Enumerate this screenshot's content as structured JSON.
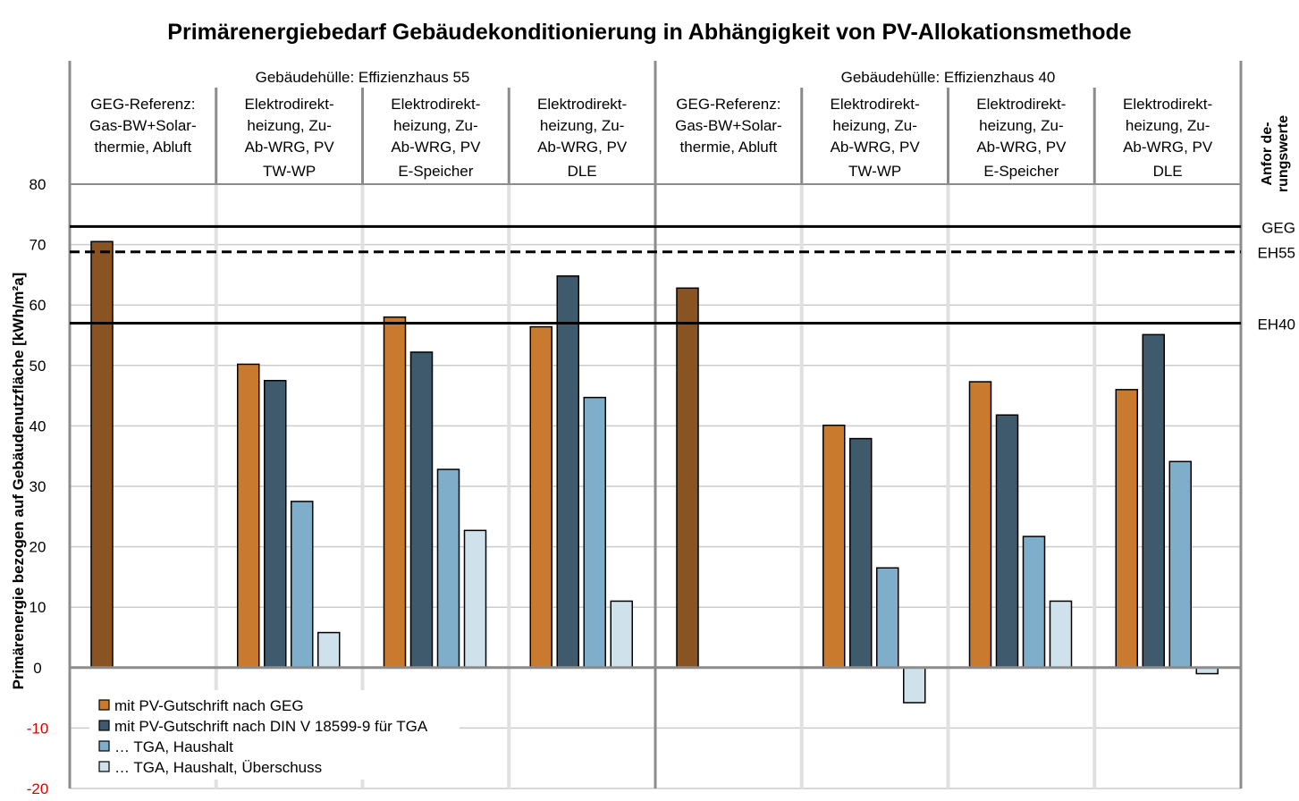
{
  "chart_data": {
    "type": "bar",
    "title": "Primärenergiebedarf  Gebäudekonditionierung in Abhängigkeit von PV-Allokationsmethode",
    "ylabel": "Primärenergie bezogen auf Gebäudenutzfläche [kWh/m²a]",
    "ylim": [
      -20,
      80
    ],
    "yticks": [
      80,
      70,
      60,
      50,
      40,
      30,
      20,
      10,
      0,
      -10,
      -20
    ],
    "grid": true,
    "legend_position": "bottom-left",
    "groups": [
      {
        "label": "Gebäudehülle: Effizienzhaus 55",
        "categories": [
          {
            "lines": [
              "GEG-Referenz:",
              "Gas-BW+Solar-",
              "thermie, Abluft"
            ],
            "sub": "",
            "values": [
              70.5,
              null,
              null,
              null
            ],
            "reference": true
          },
          {
            "lines": [
              "Elektrodirekt-",
              "heizung, Zu-",
              "Ab-WRG, PV"
            ],
            "sub": "TW-WP",
            "values": [
              50.2,
              47.5,
              27.5,
              5.8
            ]
          },
          {
            "lines": [
              "Elektrodirekt-",
              "heizung, Zu-",
              "Ab-WRG, PV"
            ],
            "sub": "E-Speicher",
            "values": [
              58.0,
              52.2,
              32.8,
              22.7
            ]
          },
          {
            "lines": [
              "Elektrodirekt-",
              "heizung, Zu-",
              "Ab-WRG, PV"
            ],
            "sub": "DLE",
            "values": [
              56.4,
              64.8,
              44.7,
              11.0
            ]
          }
        ]
      },
      {
        "label": "Gebäudehülle: Effizienzhaus 40",
        "categories": [
          {
            "lines": [
              "GEG-Referenz:",
              "Gas-BW+Solar-",
              "thermie, Abluft"
            ],
            "sub": "",
            "values": [
              62.8,
              null,
              null,
              null
            ],
            "reference": true
          },
          {
            "lines": [
              "Elektrodirekt-",
              "heizung, Zu-",
              "Ab-WRG, PV"
            ],
            "sub": "TW-WP",
            "values": [
              40.1,
              37.9,
              16.5,
              -5.8
            ]
          },
          {
            "lines": [
              "Elektrodirekt-",
              "heizung, Zu-",
              "Ab-WRG, PV"
            ],
            "sub": "E-Speicher",
            "values": [
              47.3,
              41.8,
              21.7,
              11.0
            ]
          },
          {
            "lines": [
              "Elektrodirekt-",
              "heizung, Zu-",
              "Ab-WRG, PV"
            ],
            "sub": "DLE",
            "values": [
              46.0,
              55.1,
              34.1,
              -1.0
            ]
          }
        ]
      }
    ],
    "series": [
      {
        "name": "mit PV-Gutschrift nach  GEG",
        "color": "#c97a2e"
      },
      {
        "name": "mit PV-Gutschrift nach  DIN V 18599-9 für TGA",
        "color": "#3e5a6c"
      },
      {
        "name": "…  TGA, Haushalt",
        "color": "#7faecb"
      },
      {
        "name": "…  TGA, Haushalt,  Überschuss",
        "color": "#cfe2ec"
      }
    ],
    "reference_color": "#8a5322",
    "requirement_label": [
      "Anfor de-",
      "rungswerte"
    ],
    "reference_lines": [
      {
        "label": "GEG",
        "value": 73.0,
        "style": "solid"
      },
      {
        "label": "EH55",
        "value": 68.8,
        "style": "dashed"
      },
      {
        "label": "EH40",
        "value": 57.0,
        "style": "solid"
      }
    ]
  }
}
